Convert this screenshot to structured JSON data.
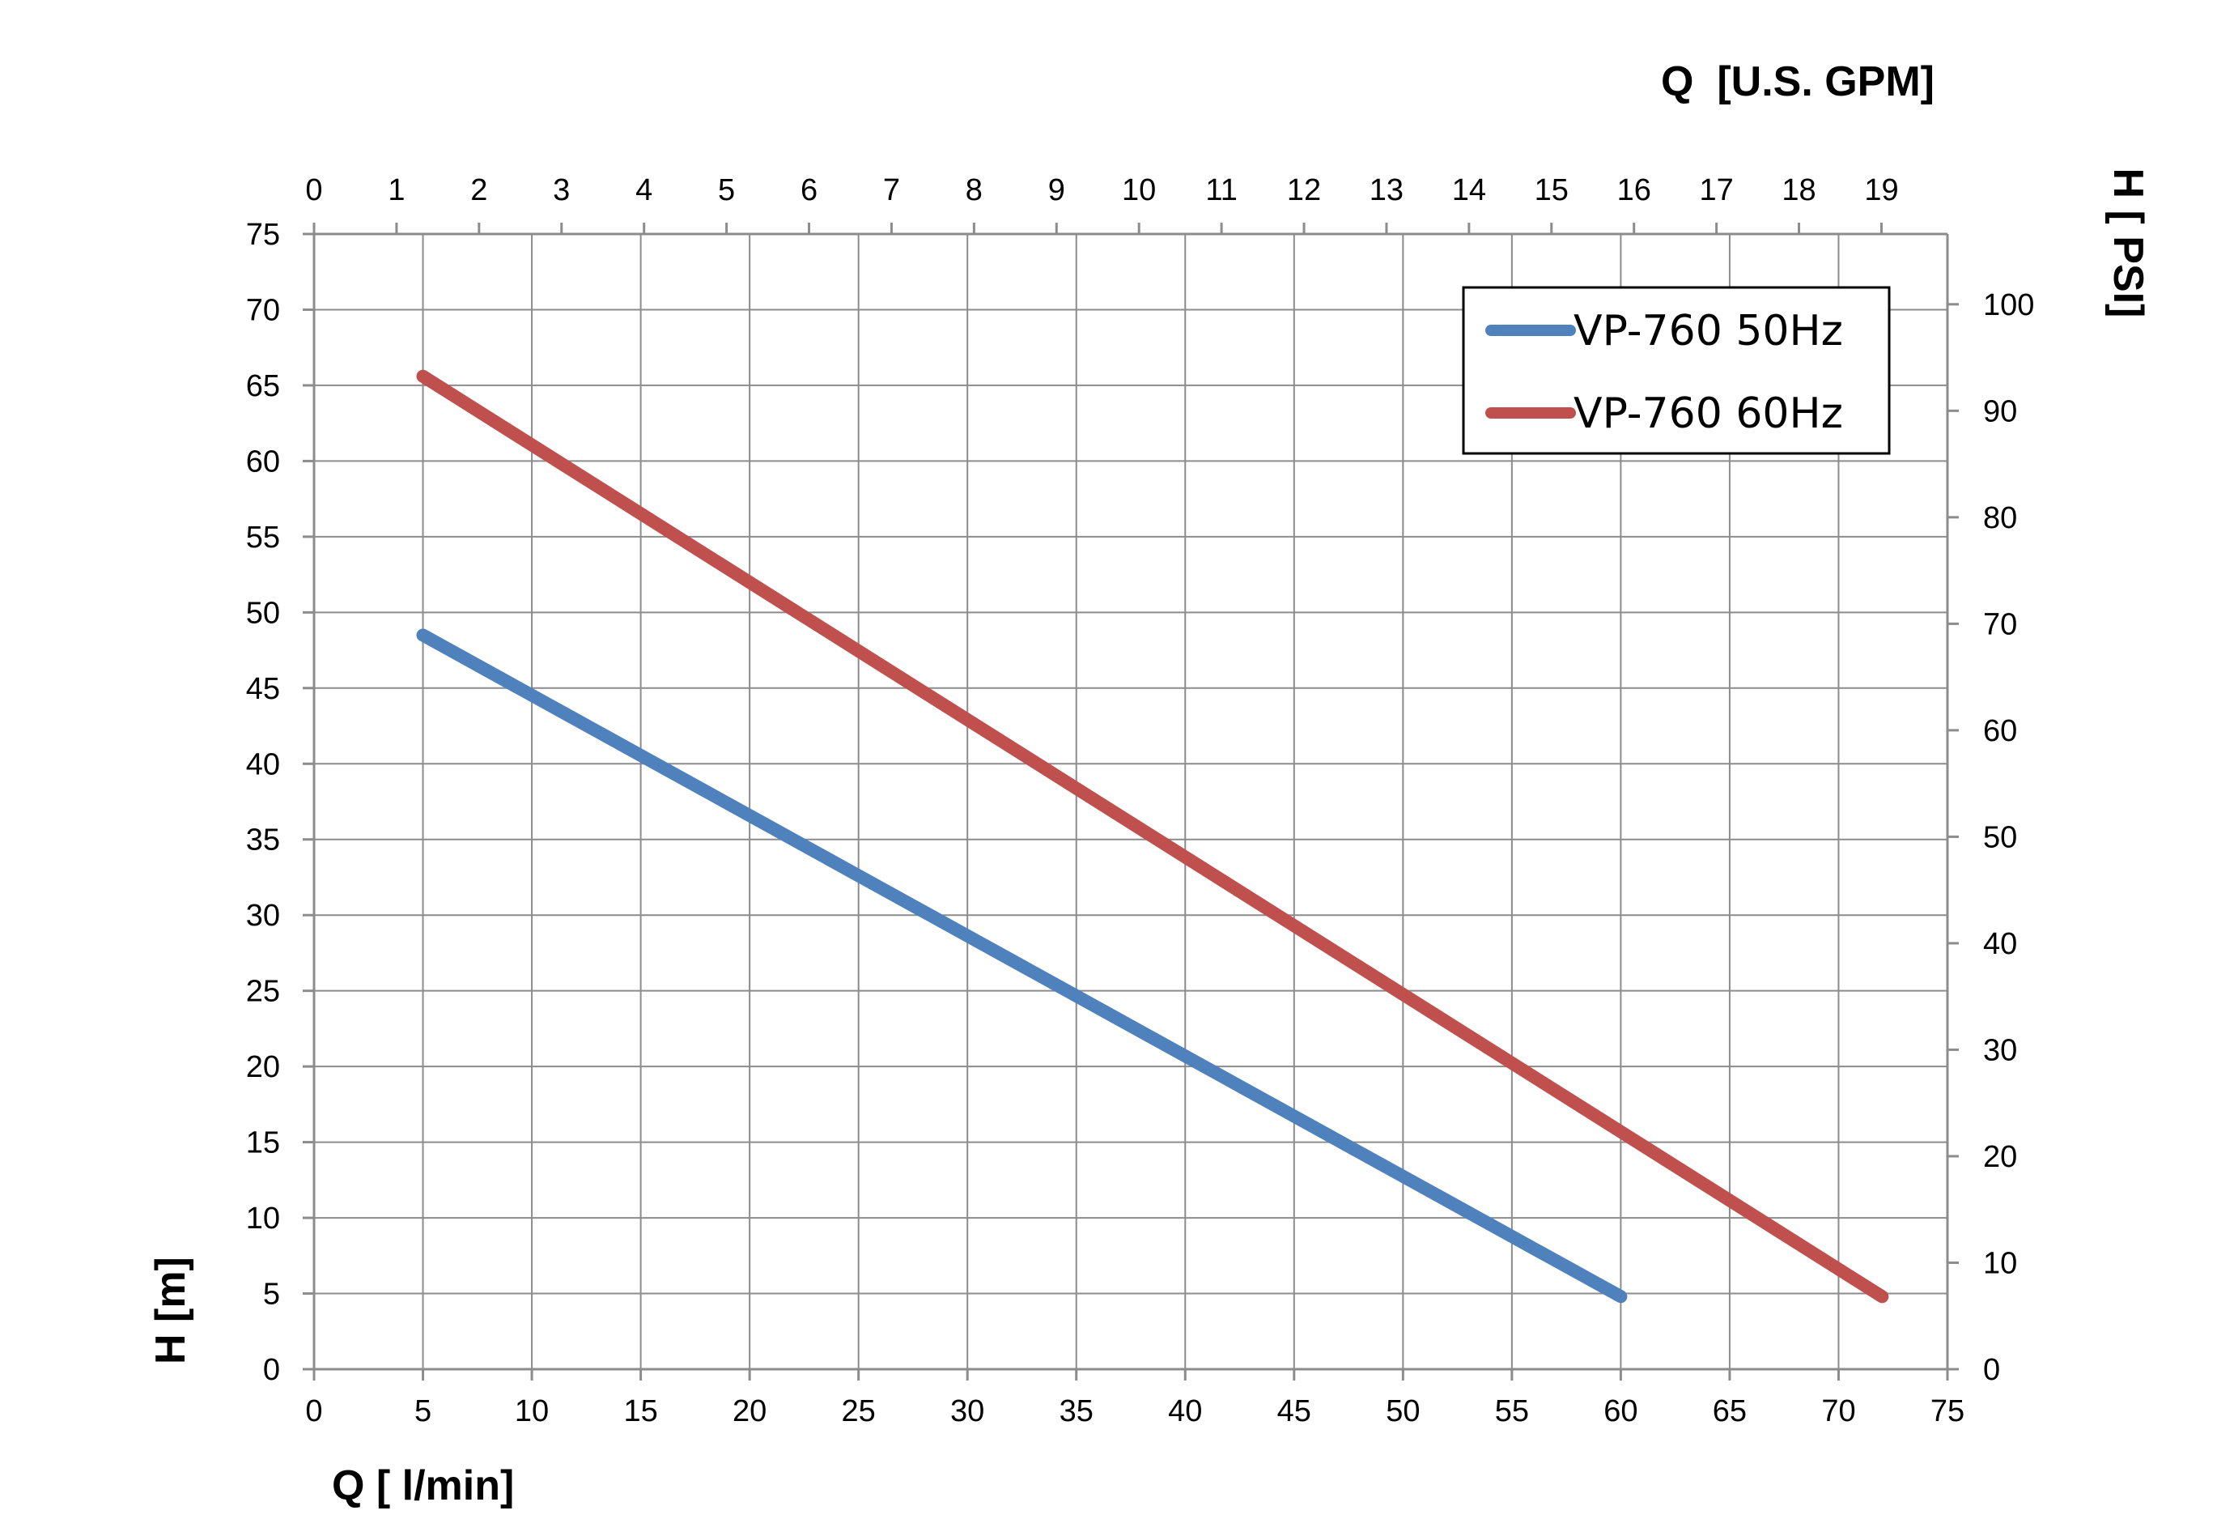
{
  "chart_data": {
    "type": "line",
    "title": "",
    "x_axis": {
      "label": "Q [ l/min]",
      "range": [
        0,
        75
      ],
      "ticks": [
        0,
        5,
        10,
        15,
        20,
        25,
        30,
        35,
        40,
        45,
        50,
        55,
        60,
        65,
        70,
        75
      ]
    },
    "x2_axis": {
      "label": "Q  [U.S. GPM]",
      "range": [
        0,
        19.8
      ],
      "ticks": [
        0,
        1,
        2,
        3,
        4,
        5,
        6,
        7,
        8,
        9,
        10,
        11,
        12,
        13,
        14,
        15,
        16,
        17,
        18,
        19
      ]
    },
    "y_axis": {
      "label": "H [m]",
      "range": [
        0,
        75
      ],
      "ticks": [
        0,
        5,
        10,
        15,
        20,
        25,
        30,
        35,
        40,
        45,
        50,
        55,
        60,
        65,
        70,
        75
      ]
    },
    "y2_axis": {
      "label": "H [ PSI]",
      "range": [
        0,
        106.6
      ],
      "ticks": [
        0,
        10,
        20,
        30,
        40,
        50,
        60,
        70,
        80,
        90,
        100
      ]
    },
    "grid": true,
    "legend_position": "top-right",
    "series": [
      {
        "name": "VP-760 50Hz",
        "color": "#4f81bd",
        "points": [
          [
            5,
            48.5
          ],
          [
            60,
            4.8
          ]
        ]
      },
      {
        "name": "VP-760 60Hz",
        "color": "#c0504d",
        "points": [
          [
            5,
            65.6
          ],
          [
            72,
            4.8
          ]
        ]
      }
    ]
  }
}
